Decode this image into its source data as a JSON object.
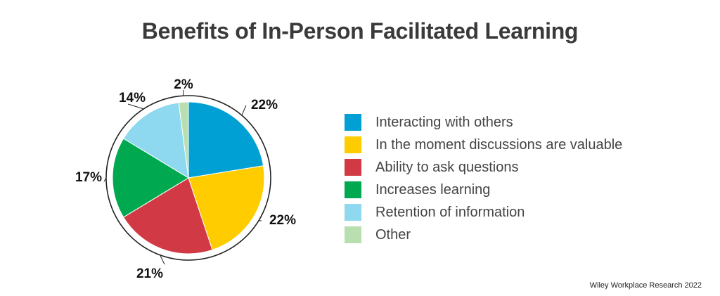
{
  "chart_data": {
    "type": "pie",
    "title": "Benefits of In-Person Facilitated Learning",
    "categories": [
      "Interacting with others",
      "In the moment discussions are valuable",
      "Ability to ask questions",
      "Increases learning",
      "Retention of information",
      "Other"
    ],
    "values": [
      22,
      22,
      21,
      17,
      14,
      2
    ],
    "labels": [
      "22%",
      "22%",
      "21%",
      "17%",
      "14%",
      "2%"
    ],
    "colors": [
      "#009fd4",
      "#ffcc00",
      "#d13a44",
      "#00a94f",
      "#8ed8f0",
      "#b9dfb0"
    ],
    "legend_position": "right"
  },
  "source": "Wiley Workplace Research 2022"
}
